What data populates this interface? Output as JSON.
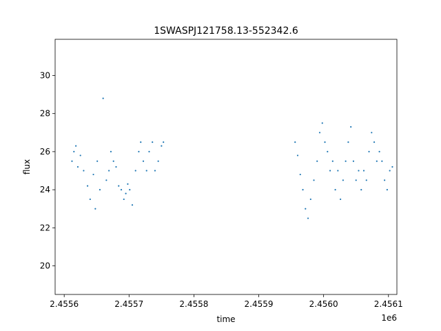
{
  "chart_data": {
    "type": "scatter",
    "title": "1SWASPJ121758.13-552342.6",
    "xlabel": "time",
    "ylabel": "flux",
    "x_offset_label": "1e6",
    "x_ticks": [
      2455600,
      2455700,
      2455800,
      2455900,
      2456000,
      2456100
    ],
    "x_tick_labels": [
      "2.4556",
      "2.4557",
      "2.4558",
      "2.4559",
      "2.4560",
      "2.4561"
    ],
    "y_ticks": [
      20,
      22,
      24,
      26,
      28,
      30
    ],
    "y_tick_labels": [
      "20",
      "22",
      "24",
      "26",
      "28",
      "30"
    ],
    "xlim": [
      2455586,
      2456113
    ],
    "ylim": [
      18.5,
      31.9
    ],
    "grid": false,
    "color": "#1f77b4",
    "series": [
      {
        "x": [
          2455612,
          2455615,
          2455618,
          2455621,
          2455625,
          2455630,
          2455636,
          2455640,
          2455645,
          2455648,
          2455651,
          2455655,
          2455660,
          2455665,
          2455669,
          2455672,
          2455676,
          2455680,
          2455684,
          2455688,
          2455692,
          2455695,
          2455698,
          2455701,
          2455705,
          2455710,
          2455715,
          2455718,
          2455722,
          2455727,
          2455731,
          2455736,
          2455740,
          2455745,
          2455750,
          2455753,
          2455956,
          2455960,
          2455964,
          2455968,
          2455972,
          2455976,
          2455980,
          2455985,
          2455990,
          2455994,
          2455998,
          2456002,
          2456006,
          2456010,
          2456014,
          2456018,
          2456022,
          2456026,
          2456030,
          2456034,
          2456038,
          2456042,
          2456046,
          2456050,
          2456054,
          2456058,
          2456062,
          2456066,
          2456070,
          2456074,
          2456078,
          2456082,
          2456086,
          2456090,
          2456094,
          2456098,
          2456102,
          2456106
        ],
        "y": [
          25.5,
          26.0,
          26.3,
          25.2,
          25.8,
          25.0,
          24.2,
          23.5,
          24.8,
          23.0,
          25.5,
          24.0,
          28.8,
          24.5,
          25.0,
          26.0,
          25.5,
          25.2,
          24.2,
          24.0,
          23.5,
          23.8,
          24.3,
          24.0,
          23.2,
          25.0,
          26.0,
          26.5,
          25.5,
          25.0,
          26.0,
          26.5,
          25.0,
          25.5,
          26.3,
          26.5,
          26.5,
          25.8,
          24.8,
          24.0,
          23.0,
          22.5,
          23.5,
          24.5,
          25.5,
          27.0,
          27.5,
          26.5,
          26.0,
          25.0,
          25.5,
          24.0,
          25.0,
          23.5,
          24.5,
          25.5,
          26.5,
          27.3,
          25.5,
          24.5,
          25.0,
          24.0,
          25.0,
          24.5,
          26.0,
          27.0,
          26.5,
          25.5,
          26.0,
          25.5,
          24.5,
          24.0,
          25.0,
          25.2
        ]
      }
    ]
  }
}
